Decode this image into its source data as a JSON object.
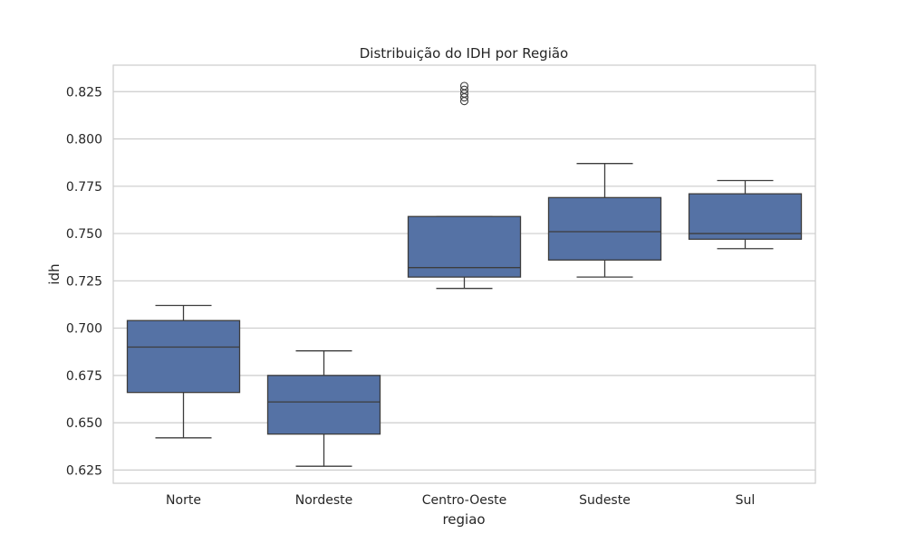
{
  "chart_data": {
    "type": "boxplot",
    "title": "Distribuição do IDH por Região",
    "xlabel": "regiao",
    "ylabel": "idh",
    "categories": [
      "Norte",
      "Nordeste",
      "Centro-Oeste",
      "Sudeste",
      "Sul"
    ],
    "ylim": [
      0.618,
      0.839
    ],
    "yticks": [
      0.625,
      0.65,
      0.675,
      0.7,
      0.725,
      0.75,
      0.775,
      0.8,
      0.825
    ],
    "ytick_labels": [
      "0.625",
      "0.650",
      "0.675",
      "0.700",
      "0.725",
      "0.750",
      "0.775",
      "0.800",
      "0.825"
    ],
    "grid": "horizontal",
    "box_color": "#5572a5",
    "line_color": "#3d3d3d",
    "boxes": [
      {
        "category": "Norte",
        "whisker_low": 0.642,
        "q1": 0.666,
        "median": 0.69,
        "q3": 0.704,
        "whisker_high": 0.712,
        "outliers": []
      },
      {
        "category": "Nordeste",
        "whisker_low": 0.627,
        "q1": 0.644,
        "median": 0.661,
        "q3": 0.675,
        "whisker_high": 0.688,
        "outliers": []
      },
      {
        "category": "Centro-Oeste",
        "whisker_low": 0.721,
        "q1": 0.727,
        "median": 0.732,
        "q3": 0.759,
        "whisker_high": 0.759,
        "outliers": [
          0.82,
          0.822,
          0.824,
          0.826,
          0.828
        ]
      },
      {
        "category": "Sudeste",
        "whisker_low": 0.727,
        "q1": 0.736,
        "median": 0.751,
        "q3": 0.769,
        "whisker_high": 0.787,
        "outliers": []
      },
      {
        "category": "Sul",
        "whisker_low": 0.742,
        "q1": 0.747,
        "median": 0.75,
        "q3": 0.771,
        "whisker_high": 0.778,
        "outliers": []
      }
    ]
  }
}
